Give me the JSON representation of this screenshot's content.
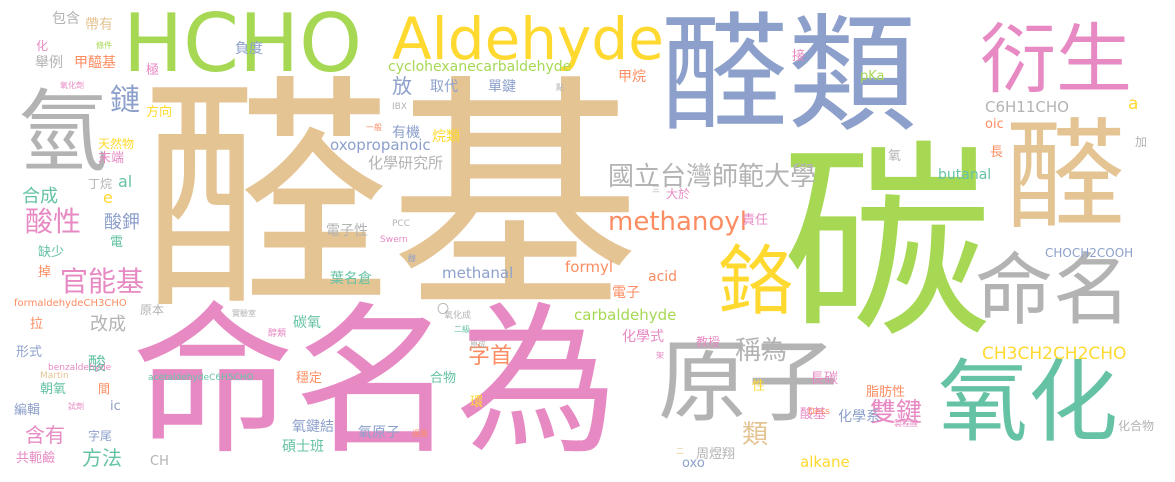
{
  "palette": {
    "tan": "#e5c494",
    "green": "#a6d854",
    "blue": "#8da0cb",
    "pink": "#e78ac3",
    "teal": "#66c2a5",
    "orange": "#fc8d62",
    "yellow": "#ffd92f",
    "gray": "#b3b3b3"
  },
  "words": [
    {
      "text": "醛基",
      "color": "#e5c494"
    },
    {
      "text": "碳",
      "color": "#a6d854"
    },
    {
      "text": "命名為",
      "color": "#e78ac3"
    },
    {
      "text": "醛類",
      "color": "#8da0cb"
    },
    {
      "text": "醛",
      "color": "#e5c494"
    },
    {
      "text": "HCHO",
      "color": "#a6d854"
    },
    {
      "text": "Aldehyde",
      "color": "#ffd92f"
    },
    {
      "text": "衍生",
      "color": "#e78ac3"
    },
    {
      "text": "氫",
      "color": "#b3b3b3"
    },
    {
      "text": "原子",
      "color": "#b3b3b3"
    },
    {
      "text": "氧化",
      "color": "#66c2a5"
    },
    {
      "text": "命名",
      "color": "#b3b3b3"
    },
    {
      "text": "鉻",
      "color": "#ffd92f"
    },
    {
      "text": "國立台灣師範大學",
      "color": "#b3b3b3"
    },
    {
      "text": "methanoyl",
      "color": "#fc8d62"
    },
    {
      "text": "CH3CH2CH2CHO",
      "color": "#ffd92f"
    },
    {
      "text": "官能基",
      "color": "#e78ac3"
    },
    {
      "text": "雙鍵",
      "color": "#e78ac3"
    },
    {
      "text": "酸性",
      "color": "#e78ac3"
    },
    {
      "text": "鏈",
      "color": "#8da0cb"
    },
    {
      "text": "稱為",
      "color": "#b3b3b3"
    },
    {
      "text": "類",
      "color": "#e5c494"
    },
    {
      "text": "字首",
      "color": "#fc8d62"
    },
    {
      "text": "方法",
      "color": "#66c2a5"
    },
    {
      "text": "含有",
      "color": "#e78ac3"
    },
    {
      "text": "合成",
      "color": "#66c2a5"
    },
    {
      "text": "酸鉀",
      "color": "#8da0cb"
    },
    {
      "text": "改成",
      "color": "#b3b3b3"
    },
    {
      "text": "酸",
      "color": "#66c2a5"
    },
    {
      "text": "放",
      "color": "#8da0cb"
    },
    {
      "text": "cyclohexanecarbaldehyde",
      "color": "#a6d854"
    },
    {
      "text": "oxopropanoic",
      "color": "#8da0cb"
    },
    {
      "text": "化學研究所",
      "color": "#b3b3b3"
    },
    {
      "text": "carbaldehyde",
      "color": "#a6d854"
    },
    {
      "text": "methanal",
      "color": "#8da0cb"
    },
    {
      "text": "formyl",
      "color": "#fc8d62"
    },
    {
      "text": "C6H11CHO",
      "color": "#b3b3b3"
    },
    {
      "text": "CHOCH2COOH",
      "color": "#8da0cb"
    },
    {
      "text": "butanal",
      "color": "#66c2a5"
    },
    {
      "text": "alkane",
      "color": "#ffd92f"
    },
    {
      "text": "acid",
      "color": "#fc8d62"
    },
    {
      "text": "oic",
      "color": "#fc8d62"
    },
    {
      "text": "pKa",
      "color": "#a6d854"
    },
    {
      "text": "a",
      "color": "#ffd92f"
    },
    {
      "text": "e",
      "color": "#ffd92f"
    },
    {
      "text": "al",
      "color": "#66c2a5"
    },
    {
      "text": "ic",
      "color": "#8da0cb"
    },
    {
      "text": "oxo",
      "color": "#8da0cb"
    },
    {
      "text": "CH",
      "color": "#b3b3b3"
    },
    {
      "text": "帶有",
      "color": "#e5c494"
    },
    {
      "text": "包含",
      "color": "#b3b3b3"
    },
    {
      "text": "舉例",
      "color": "#b3b3b3"
    },
    {
      "text": "甲醯基",
      "color": "#fc8d62"
    },
    {
      "text": "負度",
      "color": "#8da0cb"
    },
    {
      "text": "取代",
      "color": "#8da0cb"
    },
    {
      "text": "單鍵",
      "color": "#8da0cb"
    },
    {
      "text": "甲烷",
      "color": "#fc8d62"
    },
    {
      "text": "有機",
      "color": "#8da0cb"
    },
    {
      "text": "烷類",
      "color": "#ffd92f"
    },
    {
      "text": "電子性",
      "color": "#b3b3b3"
    },
    {
      "text": "葉名倉",
      "color": "#66c2a5"
    },
    {
      "text": "電子",
      "color": "#fc8d62"
    },
    {
      "text": "化學式",
      "color": "#e78ac3"
    },
    {
      "text": "教授",
      "color": "#e78ac3"
    },
    {
      "text": "性",
      "color": "#ffd92f"
    },
    {
      "text": "長碳",
      "color": "#e78ac3"
    },
    {
      "text": "脂肪性",
      "color": "#fc8d62"
    },
    {
      "text": "酸基",
      "color": "#e78ac3"
    },
    {
      "text": "化學系",
      "color": "#8da0cb"
    },
    {
      "text": "周煜翔",
      "color": "#b3b3b3"
    },
    {
      "text": "碩士班",
      "color": "#66c2a5"
    },
    {
      "text": "氧鍵結",
      "color": "#8da0cb"
    },
    {
      "text": "氧原子",
      "color": "#8da0cb"
    },
    {
      "text": "穩定",
      "color": "#fc8d62"
    },
    {
      "text": "合物",
      "color": "#66c2a5"
    },
    {
      "text": "環",
      "color": "#ffd92f"
    },
    {
      "text": "碳氧",
      "color": "#66c2a5"
    },
    {
      "text": "責任",
      "color": "#e78ac3"
    },
    {
      "text": "大於",
      "color": "#e78ac3"
    },
    {
      "text": "長",
      "color": "#fc8d62"
    },
    {
      "text": "氧",
      "color": "#b3b3b3"
    },
    {
      "text": "加",
      "color": "#b3b3b3"
    },
    {
      "text": "化合物",
      "color": "#b3b3b3"
    },
    {
      "text": "接",
      "color": "#e78ac3"
    },
    {
      "text": "極",
      "color": "#e78ac3"
    },
    {
      "text": "方向",
      "color": "#ffd92f"
    },
    {
      "text": "天然物",
      "color": "#ffd92f"
    },
    {
      "text": "末端",
      "color": "#e78ac3"
    },
    {
      "text": "丁烷",
      "color": "#b3b3b3"
    },
    {
      "text": "電",
      "color": "#66c2a5"
    },
    {
      "text": "缺少",
      "color": "#66c2a5"
    },
    {
      "text": "掉",
      "color": "#fc8d62"
    },
    {
      "text": "拉",
      "color": "#fc8d62"
    },
    {
      "text": "原本",
      "color": "#b3b3b3"
    },
    {
      "text": "形式",
      "color": "#8da0cb"
    },
    {
      "text": "朝氧",
      "color": "#66c2a5"
    },
    {
      "text": "間",
      "color": "#fc8d62"
    },
    {
      "text": "編輯",
      "color": "#8da0cb"
    },
    {
      "text": "共軛鹼",
      "color": "#e78ac3"
    },
    {
      "text": "字尾",
      "color": "#8da0cb"
    },
    {
      "text": "化",
      "color": "#e78ac3"
    },
    {
      "text": "條件",
      "color": "#a6d854"
    },
    {
      "text": "氧化劑",
      "color": "#e78ac3"
    },
    {
      "text": "IBX",
      "color": "#b3b3b3"
    },
    {
      "text": "一般",
      "color": "#fc8d62"
    },
    {
      "text": "PCC",
      "color": "#b3b3b3"
    },
    {
      "text": "Swern",
      "color": "#e78ac3"
    },
    {
      "text": "醇",
      "color": "#8da0cb"
    },
    {
      "text": "氧化成",
      "color": "#b3b3b3"
    },
    {
      "text": "二級",
      "color": "#66c2a5"
    },
    {
      "text": "實驗室",
      "color": "#b3b3b3"
    },
    {
      "text": "醇類",
      "color": "#e78ac3"
    },
    {
      "text": "原成",
      "color": "#b3b3b3"
    },
    {
      "text": "架",
      "color": "#e78ac3"
    },
    {
      "text": "Dess",
      "color": "#fc8d62"
    },
    {
      "text": "製程醛",
      "color": "#e78ac3"
    },
    {
      "text": "Martin",
      "color": "#e5c494"
    },
    {
      "text": "試劑",
      "color": "#e78ac3"
    },
    {
      "text": "過量",
      "color": "#fc8d62"
    },
    {
      "text": "二",
      "color": "#e5c494"
    },
    {
      "text": "三",
      "color": "#b3b3b3"
    },
    {
      "text": "點",
      "color": "#b3b3b3"
    },
    {
      "text": "formaldehydeCH3CHO",
      "color": "#fc8d62"
    },
    {
      "text": "benzaldehyde",
      "color": "#e78ac3"
    },
    {
      "text": "acetaldehydeC6H5CHO",
      "color": "#66c2a5"
    },
    {
      "text": "〇",
      "color": "#b3b3b3"
    }
  ]
}
